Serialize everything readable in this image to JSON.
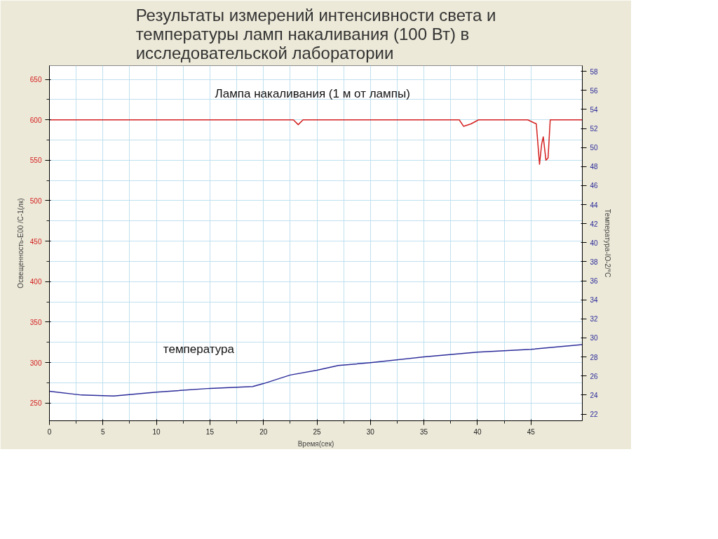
{
  "chart_data": {
    "type": "line",
    "title": "Результаты измерений интенсивности света и температуры ламп накаливания (100 Вт) в исследовательской лаборатории",
    "xlabel": "Время(сек)",
    "ylabel": "Освещенность-E00 /С-1(лк)",
    "y2label": "Температура-IO-2/°C",
    "xlim": [
      0,
      49.8
    ],
    "xticks": [
      0,
      5,
      10,
      15,
      20,
      25,
      30,
      35,
      40,
      45
    ],
    "ylim": [
      228,
      667
    ],
    "yticks": [
      250,
      300,
      350,
      400,
      450,
      500,
      550,
      600,
      650
    ],
    "y2lim": [
      21.3,
      58.6
    ],
    "y2ticks": [
      22,
      24,
      26,
      28,
      30,
      32,
      34,
      36,
      38,
      40,
      42,
      44,
      46,
      48,
      50,
      52,
      54,
      56,
      58
    ],
    "grid": true,
    "legend": false,
    "line_style": "solid",
    "series": [
      {
        "name": "Лампа накаливания (1 м от лампы)",
        "color": "#d42020",
        "x": [
          0,
          22.8,
          23.25,
          23.7,
          38.3,
          38.7,
          39.4,
          40.1,
          44.7,
          45.5,
          45.8,
          46.0,
          46.15,
          46.4,
          46.6,
          46.8,
          49.8
        ],
        "values": [
          600,
          600,
          594,
          600,
          600,
          592,
          595,
          600,
          600,
          595,
          545,
          570,
          579,
          550,
          553,
          600,
          600
        ]
      },
      {
        "name": "температура",
        "color": "#2b2b9a",
        "axis": "y2",
        "x": [
          0,
          3,
          6,
          10,
          15,
          19,
          20,
          22.5,
          25,
          27,
          30,
          35,
          40,
          45,
          49.8
        ],
        "values": [
          24.4,
          24.0,
          23.9,
          24.3,
          24.7,
          24.9,
          25.2,
          26.1,
          26.6,
          27.1,
          27.4,
          28.0,
          28.5,
          28.8,
          29.3
        ]
      }
    ]
  }
}
